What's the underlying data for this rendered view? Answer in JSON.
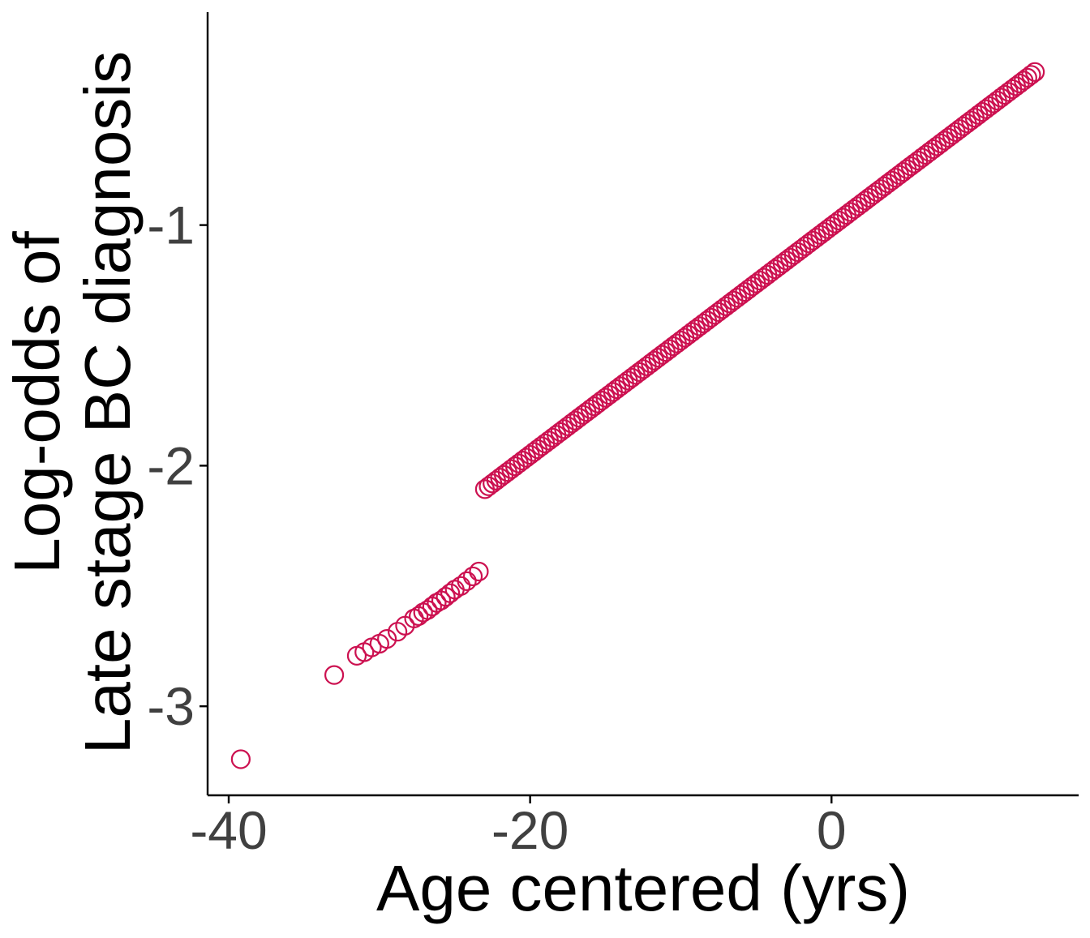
{
  "chart_data": {
    "type": "scatter",
    "title": "",
    "xlabel": "Age centered (yrs)",
    "ylabel_lines": [
      "Log-odds of",
      "Late stage BC diagnosis"
    ],
    "xlim": [
      -41.4,
      16.4
    ],
    "ylim": [
      -3.37,
      -0.105
    ],
    "x_ticks": [
      -40,
      -20,
      0
    ],
    "x_tick_labels": [
      "-40",
      "-20",
      "0"
    ],
    "y_ticks": [
      -3,
      -2,
      -1
    ],
    "y_tick_labels": [
      "-3",
      "-2",
      "-1"
    ],
    "grid": false,
    "legend": "none",
    "marker": "open-circle",
    "marker_color": "#cc1150",
    "relationship": "linear",
    "line_fit": {
      "slope": 0.0475,
      "intercept": -1.005
    },
    "dense_x_range": [
      -23,
      13.5
    ],
    "x_step_dense": 0.25,
    "points": [
      {
        "x": -39.2,
        "y": -3.22
      },
      {
        "x": -33.0,
        "y": -2.87
      },
      {
        "x": -31.5,
        "y": -2.79
      },
      {
        "x": -31.0,
        "y": -2.775
      },
      {
        "x": -30.5,
        "y": -2.755
      },
      {
        "x": -30.0,
        "y": -2.74
      },
      {
        "x": -29.5,
        "y": -2.72
      },
      {
        "x": -28.8,
        "y": -2.69
      },
      {
        "x": -28.3,
        "y": -2.665
      },
      {
        "x": -27.7,
        "y": -2.635
      },
      {
        "x": -27.4,
        "y": -2.625
      },
      {
        "x": -27.1,
        "y": -2.61
      },
      {
        "x": -26.8,
        "y": -2.6
      },
      {
        "x": -26.5,
        "y": -2.585
      },
      {
        "x": -26.2,
        "y": -2.57
      },
      {
        "x": -25.9,
        "y": -2.56
      },
      {
        "x": -25.6,
        "y": -2.545
      },
      {
        "x": -25.3,
        "y": -2.53
      },
      {
        "x": -25.0,
        "y": -2.515
      },
      {
        "x": -24.6,
        "y": -2.5
      },
      {
        "x": -24.2,
        "y": -2.48
      },
      {
        "x": -23.8,
        "y": -2.46
      },
      {
        "x": -23.4,
        "y": -2.44
      }
    ]
  }
}
